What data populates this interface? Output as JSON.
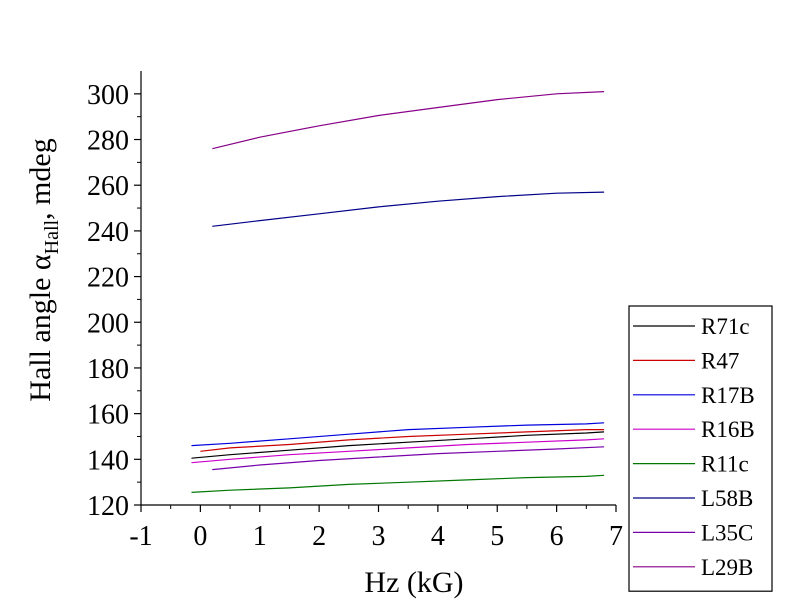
{
  "chart_data": {
    "type": "line",
    "xlabel": "Hz (kG)",
    "ylabel_parts": {
      "main": "Hall angle α",
      "sub": "Hall",
      "tail": ", mdeg"
    },
    "xlim": [
      -1,
      7
    ],
    "ylim": [
      120,
      310
    ],
    "xticks": [
      -1,
      0,
      1,
      2,
      3,
      4,
      5,
      6,
      7
    ],
    "yticks": [
      120,
      140,
      160,
      180,
      200,
      220,
      240,
      260,
      280,
      300
    ],
    "grid": false,
    "legend_position": "right",
    "series": [
      {
        "name": "R71c",
        "color": "#000000",
        "x": [
          -0.15,
          0.5,
          1.5,
          2.5,
          3.5,
          4.5,
          5.5,
          6.5,
          6.8
        ],
        "y": [
          140.5,
          142.0,
          144.0,
          146.0,
          147.5,
          149.0,
          150.5,
          151.5,
          152.0
        ]
      },
      {
        "name": "R47",
        "color": "#cc0000",
        "x": [
          0.0,
          0.5,
          1.5,
          2.5,
          3.5,
          4.5,
          5.5,
          6.5,
          6.8
        ],
        "y": [
          143.5,
          145.0,
          146.5,
          148.5,
          150.0,
          151.0,
          152.0,
          153.0,
          153.0
        ]
      },
      {
        "name": "R17B",
        "color": "#0000dd",
        "x": [
          -0.15,
          0.5,
          1.5,
          2.5,
          3.5,
          4.5,
          5.5,
          6.5,
          6.8
        ],
        "y": [
          146.0,
          147.0,
          149.0,
          151.0,
          153.0,
          154.0,
          155.0,
          155.5,
          156.0
        ]
      },
      {
        "name": "R16B",
        "color": "#cc00cc",
        "x": [
          -0.15,
          0.5,
          1.5,
          2.5,
          3.5,
          4.5,
          5.5,
          6.5,
          6.8
        ],
        "y": [
          138.5,
          140.0,
          142.0,
          143.5,
          145.0,
          146.5,
          147.5,
          148.5,
          149.0
        ]
      },
      {
        "name": "R11c",
        "color": "#007700",
        "x": [
          -0.15,
          0.5,
          1.5,
          2.5,
          3.5,
          4.5,
          5.5,
          6.5,
          6.8
        ],
        "y": [
          125.5,
          126.5,
          127.5,
          129.0,
          130.0,
          131.0,
          132.0,
          132.5,
          133.0
        ]
      },
      {
        "name": "L58B",
        "color": "#000088",
        "x": [
          0.2,
          1.0,
          2.0,
          3.0,
          4.0,
          5.0,
          6.0,
          6.8
        ],
        "y": [
          242.0,
          244.5,
          247.5,
          250.5,
          253.0,
          255.0,
          256.5,
          257.0
        ]
      },
      {
        "name": "L35C",
        "color": "#7700aa",
        "x": [
          0.2,
          1.0,
          2.0,
          3.0,
          4.0,
          5.0,
          6.0,
          6.8
        ],
        "y": [
          135.5,
          137.5,
          139.5,
          141.0,
          142.5,
          143.5,
          144.5,
          145.5
        ]
      },
      {
        "name": "L29B",
        "color": "#880088",
        "x": [
          0.2,
          1.0,
          2.0,
          3.0,
          4.0,
          5.0,
          6.0,
          6.8
        ],
        "y": [
          276.0,
          281.0,
          286.0,
          290.5,
          294.0,
          297.5,
          300.0,
          301.0
        ]
      }
    ]
  }
}
